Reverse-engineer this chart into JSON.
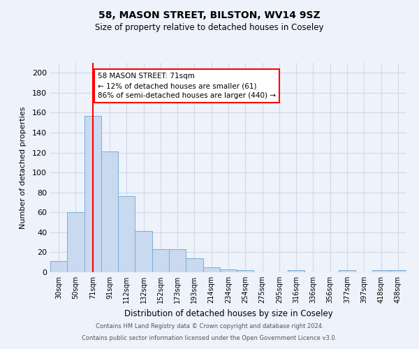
{
  "title1": "58, MASON STREET, BILSTON, WV14 9SZ",
  "title2": "Size of property relative to detached houses in Coseley",
  "xlabel": "Distribution of detached houses by size in Coseley",
  "ylabel": "Number of detached properties",
  "categories": [
    "30sqm",
    "50sqm",
    "71sqm",
    "91sqm",
    "112sqm",
    "132sqm",
    "152sqm",
    "173sqm",
    "193sqm",
    "214sqm",
    "234sqm",
    "254sqm",
    "275sqm",
    "295sqm",
    "316sqm",
    "336sqm",
    "356sqm",
    "377sqm",
    "397sqm",
    "418sqm",
    "438sqm"
  ],
  "values": [
    11,
    60,
    157,
    121,
    76,
    41,
    23,
    23,
    14,
    5,
    3,
    2,
    0,
    0,
    2,
    0,
    0,
    2,
    0,
    2,
    2
  ],
  "bar_color": "#c9d9f0",
  "bar_edge_color": "#7badd4",
  "grid_color": "#d0d8eb",
  "bg_color": "#eef2fb",
  "red_line_x": 2,
  "annotation_line1": "58 MASON STREET: 71sqm",
  "annotation_line2": "← 12% of detached houses are smaller (61)",
  "annotation_line3": "86% of semi-detached houses are larger (440) →",
  "annotation_box_color": "white",
  "annotation_box_edge": "red",
  "footer1": "Contains HM Land Registry data © Crown copyright and database right 2024.",
  "footer2": "Contains public sector information licensed under the Open Government Licence v3.0.",
  "ylim": [
    0,
    210
  ],
  "yticks": [
    0,
    20,
    40,
    60,
    80,
    100,
    120,
    140,
    160,
    180,
    200
  ]
}
